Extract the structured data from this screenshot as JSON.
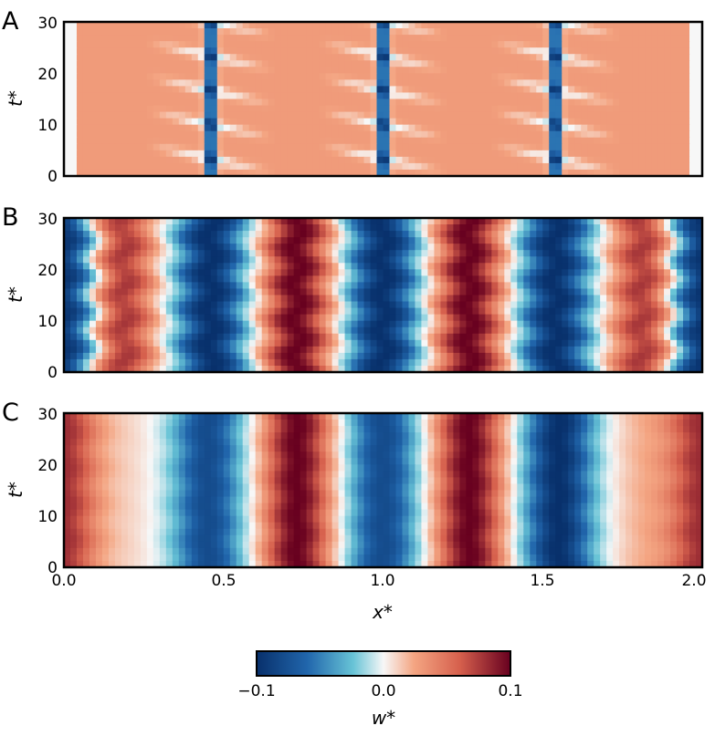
{
  "panels": [
    {
      "label": "A",
      "ylabel": "t*",
      "ylim": [
        0,
        30
      ],
      "yticks": [
        "0",
        "10",
        "20",
        "30"
      ],
      "fronts": [
        0.46,
        1.0,
        1.54
      ],
      "description_values": {
        "background": 0.03,
        "front_value": -0.09
      }
    },
    {
      "label": "B",
      "ylabel": "t*",
      "ylim": [
        0,
        30
      ],
      "yticks": [
        "0",
        "10",
        "20",
        "30"
      ],
      "bands": [
        {
          "center": 0.0,
          "value": -0.1
        },
        {
          "center": 0.18,
          "value": 0.08
        },
        {
          "center": 0.46,
          "value": -0.1
        },
        {
          "center": 0.73,
          "value": 0.1
        },
        {
          "center": 1.0,
          "value": -0.1
        },
        {
          "center": 1.27,
          "value": 0.1
        },
        {
          "center": 1.54,
          "value": -0.1
        },
        {
          "center": 1.82,
          "value": 0.08
        },
        {
          "center": 2.0,
          "value": -0.1
        }
      ]
    },
    {
      "label": "C",
      "ylabel": "t*",
      "ylim": [
        0,
        30
      ],
      "yticks": [
        "0",
        "10",
        "20",
        "30"
      ],
      "bands": [
        {
          "center": 0.0,
          "value": 0.08
        },
        {
          "center": 0.18,
          "value": 0.01
        },
        {
          "center": 0.45,
          "value": -0.08
        },
        {
          "center": 0.73,
          "value": 0.1
        },
        {
          "center": 1.0,
          "value": -0.08
        },
        {
          "center": 1.27,
          "value": 0.1
        },
        {
          "center": 1.55,
          "value": -0.1
        },
        {
          "center": 1.82,
          "value": 0.02
        },
        {
          "center": 2.0,
          "value": 0.08
        }
      ]
    }
  ],
  "chart_data": {
    "type": "heatmap",
    "xlabel": "x*",
    "xlim": [
      0.0,
      2.0
    ],
    "xticks": [
      "0.0",
      "0.5",
      "1.0",
      "1.5",
      "2.0"
    ],
    "colorbar": {
      "label": "w*",
      "range": [
        -0.1,
        0.1
      ],
      "ticks": [
        "−0.1",
        "0.0",
        "0.1"
      ],
      "colormap": "RdBu_r"
    }
  },
  "colors": {
    "deep_blue": "#08306b",
    "blue": "#2166ac",
    "light_blue": "#67c3d6",
    "white": "#f7f7f7",
    "light_red": "#f4a582",
    "red": "#d6604d",
    "dark_red": "#67001f"
  }
}
